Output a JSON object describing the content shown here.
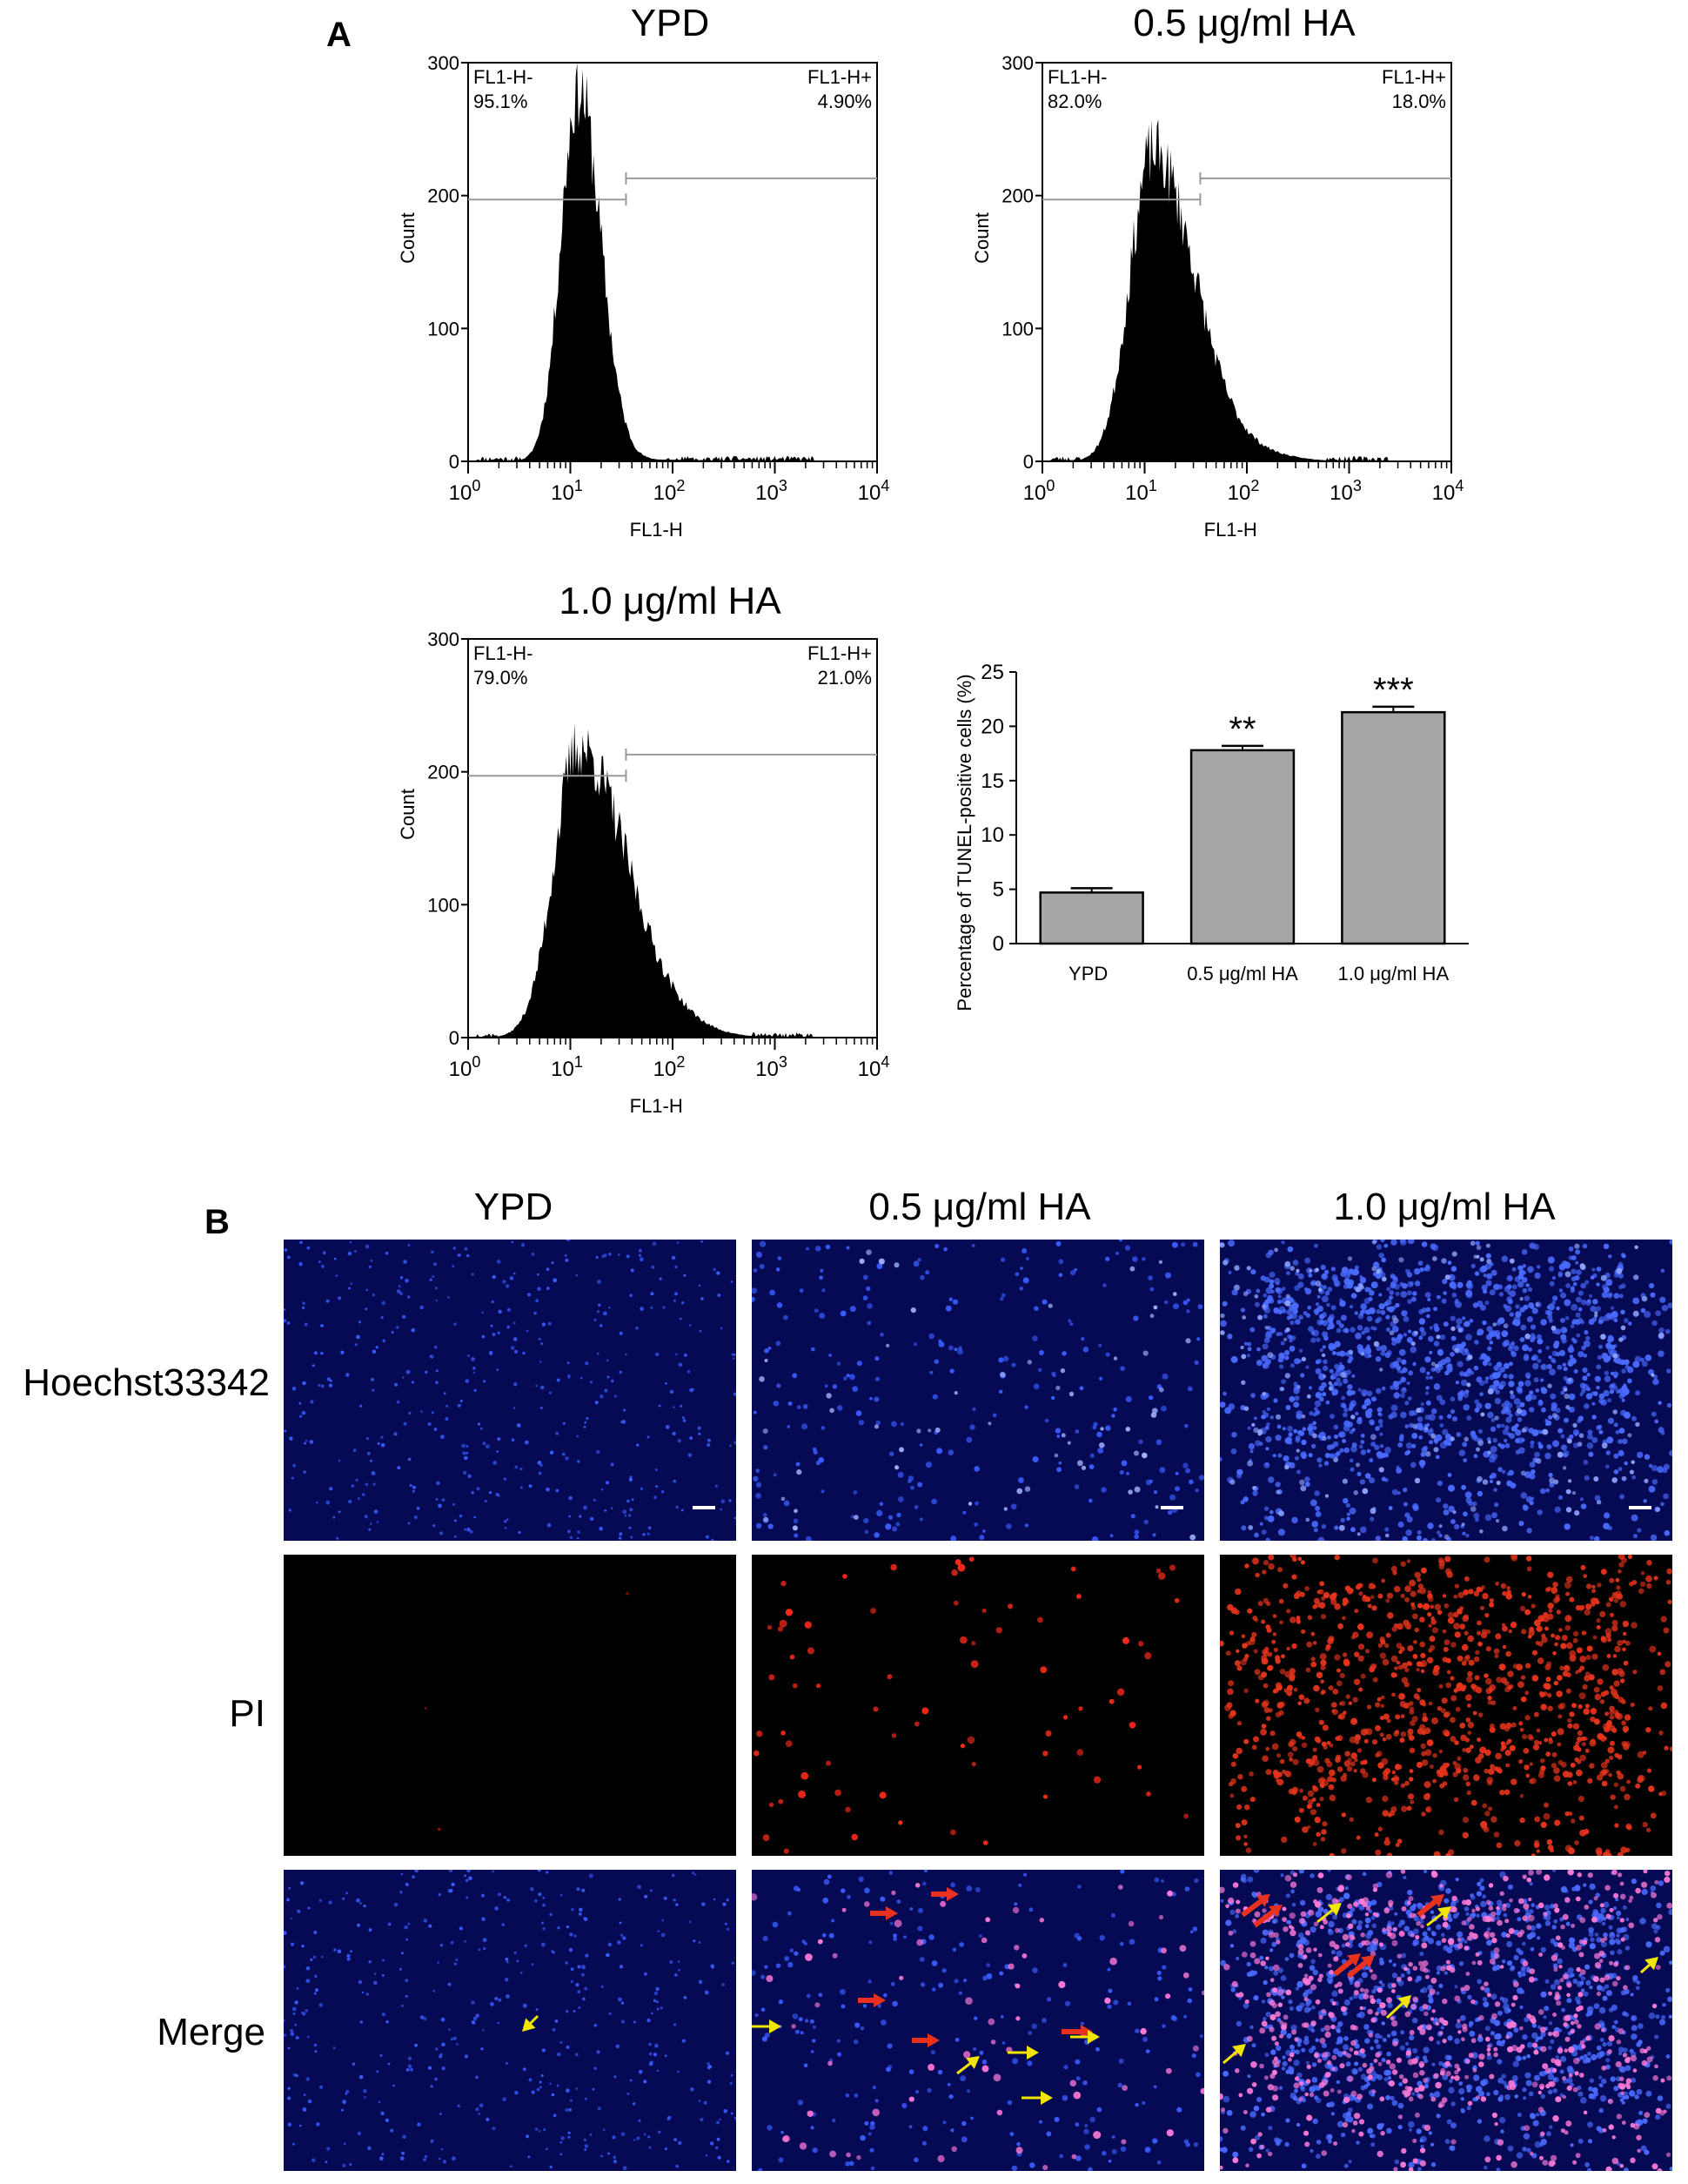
{
  "panel_a": {
    "letter": "A",
    "titles": [
      "YPD",
      "0.5 μg/ml HA",
      "1.0 μg/ml HA"
    ]
  },
  "panel_b": {
    "letter": "B",
    "column_titles": [
      "YPD",
      "0.5 μg/ml HA",
      "1.0 μg/ml HA"
    ],
    "row_labels": [
      "Hoechst33342",
      "PI",
      "Merge"
    ]
  },
  "chart_data": [
    {
      "type": "area",
      "title": "YPD",
      "xlabel": "FL1-H",
      "ylabel": "Count",
      "x_scale": "log",
      "xlim": [
        1,
        10000
      ],
      "ylim": [
        0,
        300
      ],
      "x_ticks": [
        "10^0",
        "10^1",
        "10^2",
        "10^3",
        "10^4"
      ],
      "y_ticks": [
        0,
        100,
        200,
        300
      ],
      "gate_left": {
        "label": "FL1-H-",
        "percent": "95.1%"
      },
      "gate_right": {
        "label": "FL1-H+",
        "percent": "4.90%"
      },
      "peak_x": 12,
      "peak_count": 290,
      "width_log": 0.2,
      "tail": 0.05
    },
    {
      "type": "area",
      "title": "0.5 μg/ml HA",
      "xlabel": "FL1-H",
      "ylabel": "Count",
      "x_scale": "log",
      "xlim": [
        1,
        10000
      ],
      "ylim": [
        0,
        300
      ],
      "x_ticks": [
        "10^0",
        "10^1",
        "10^2",
        "10^3",
        "10^4"
      ],
      "y_ticks": [
        0,
        100,
        200,
        300
      ],
      "gate_left": {
        "label": "FL1-H-",
        "percent": "82.0%"
      },
      "gate_right": {
        "label": "FL1-H+",
        "percent": "18.0%"
      },
      "peak_x": 12,
      "peak_count": 240,
      "width_log": 0.26,
      "tail": 0.35
    },
    {
      "type": "area",
      "title": "1.0 μg/ml HA",
      "xlabel": "FL1-H",
      "ylabel": "Count",
      "x_scale": "log",
      "xlim": [
        1,
        10000
      ],
      "ylim": [
        0,
        300
      ],
      "x_ticks": [
        "10^0",
        "10^1",
        "10^2",
        "10^3",
        "10^4"
      ],
      "y_ticks": [
        0,
        100,
        200,
        300
      ],
      "gate_left": {
        "label": "FL1-H-",
        "percent": "79.0%"
      },
      "gate_right": {
        "label": "FL1-H+",
        "percent": "21.0%"
      },
      "peak_x": 12,
      "peak_count": 225,
      "width_log": 0.28,
      "tail": 0.42
    },
    {
      "type": "bar",
      "categories": [
        "YPD",
        "0.5 μg/ml HA",
        "1.0 μg/ml HA"
      ],
      "values": [
        4.7,
        17.8,
        21.3
      ],
      "errors": [
        0.4,
        0.4,
        0.5
      ],
      "significance": [
        "",
        "**",
        "***"
      ],
      "ylabel": "Percentage of TUNEL-positive cells (%)",
      "ylim": [
        0,
        25
      ],
      "y_ticks": [
        0,
        5,
        10,
        15,
        20,
        25
      ],
      "bar_color": "#a6a6a6"
    }
  ],
  "colors": {
    "histogram_fill": "#000000",
    "gate_line": "#9a9a9a",
    "hoechst_blue": "#3a5cff",
    "pi_red": "#ff2a1a",
    "merge_pink": "#ff7ad8",
    "arrow_red": "#e8321e",
    "arrow_yellow": "#f2e600",
    "micro_bg_blue": "#060a55",
    "micro_bg_black": "#000000"
  }
}
